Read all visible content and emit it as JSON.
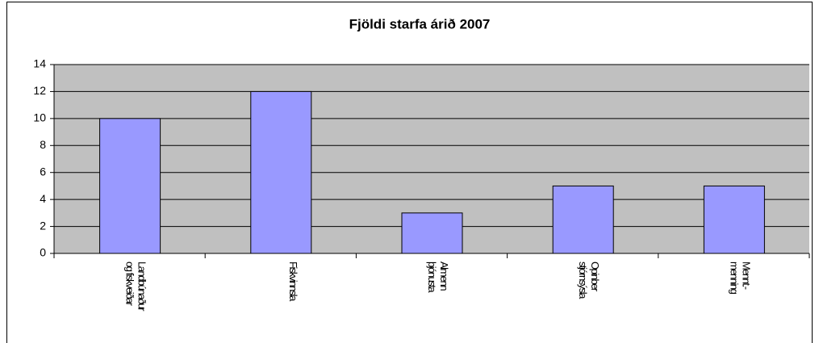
{
  "chart_data": {
    "type": "bar",
    "title": "Fjöldi starfa árið 2007",
    "categories": [
      "Landbúnaður og fiskveiðar",
      "Fiskvinnsla",
      "Almenn þjónusta",
      "Opinber stjórnsýsla",
      "Mennt.- menning"
    ],
    "values": [
      10,
      12,
      3,
      5,
      5
    ],
    "color": "#9999ff",
    "plot_background": "#c0c0c0",
    "ylim": [
      0,
      14
    ],
    "yticks": [
      0,
      2,
      4,
      6,
      8,
      10,
      12,
      14
    ],
    "grid": true
  }
}
